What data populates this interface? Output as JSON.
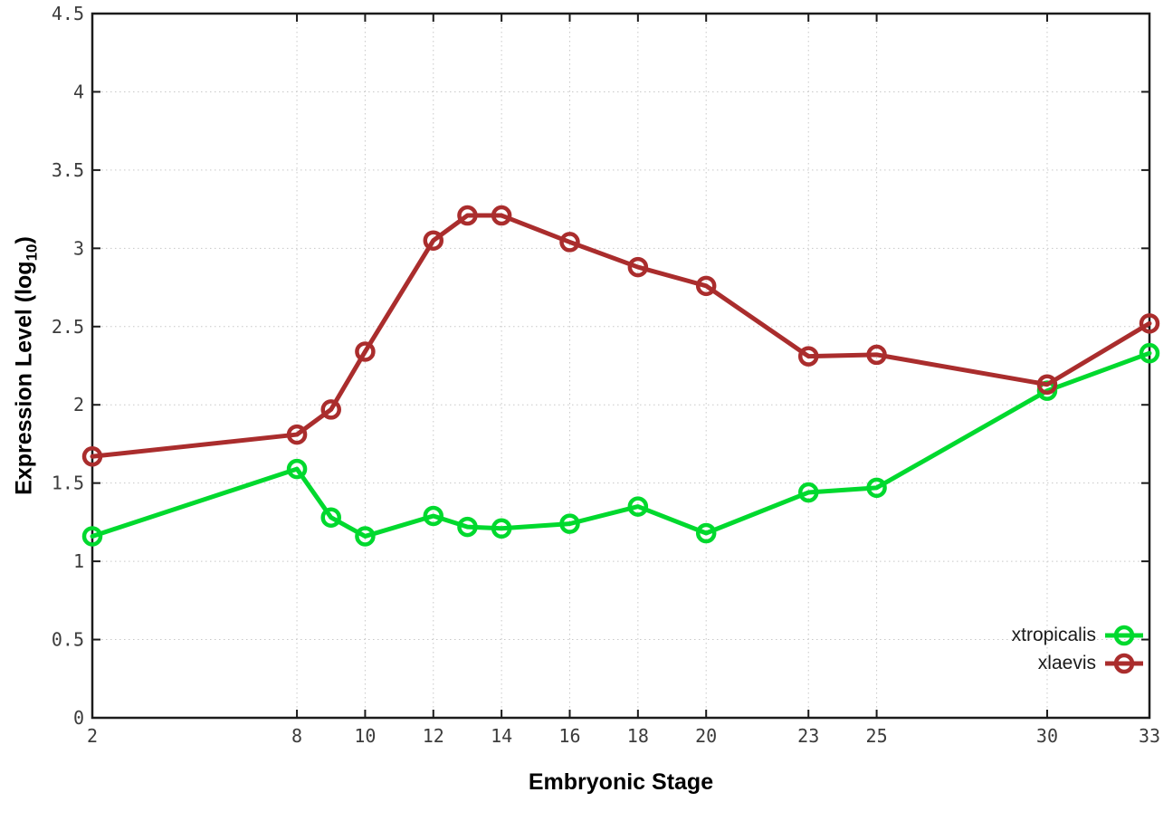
{
  "chart_data": {
    "type": "line",
    "x": [
      2,
      8,
      9,
      10,
      12,
      13,
      14,
      16,
      18,
      20,
      23,
      25,
      30,
      33
    ],
    "series": [
      {
        "name": "xtropicalis",
        "color": "#00d92e",
        "values": [
          1.16,
          1.59,
          1.28,
          1.16,
          1.29,
          1.22,
          1.21,
          1.24,
          1.35,
          1.18,
          1.44,
          1.47,
          2.09,
          2.33
        ]
      },
      {
        "name": "xlaevis",
        "color": "#aa2d2d",
        "values": [
          1.67,
          1.81,
          1.97,
          2.34,
          3.05,
          3.21,
          3.21,
          3.04,
          2.88,
          2.76,
          2.31,
          2.32,
          2.13,
          2.52
        ]
      }
    ],
    "title": "",
    "xlabel": "Embryonic Stage",
    "ylabel": "Expression Level (log10)",
    "xlim": [
      2,
      33
    ],
    "ylim": [
      0,
      4.5
    ],
    "x_ticks": [
      2,
      8,
      10,
      12,
      14,
      16,
      18,
      20,
      23,
      25,
      30,
      33
    ],
    "x_tick_labels": [
      "2",
      "8",
      "10",
      "12",
      "14",
      "16",
      "18",
      "20",
      "23",
      "25",
      "30",
      "33"
    ],
    "y_ticks": [
      0,
      0.5,
      1,
      1.5,
      2,
      2.5,
      3,
      3.5,
      4,
      4.5
    ],
    "y_tick_labels": [
      "0",
      "0.5",
      "1",
      "1.5",
      "2",
      "2.5",
      "3",
      "3.5",
      "4",
      "4.5"
    ],
    "grid": true,
    "legend_position": "bottom-right"
  },
  "x_axis_label": "Embryonic Stage",
  "y_axis_label": {
    "main": "Expression Level (log",
    "sub": "10",
    "end": ")"
  },
  "legend": {
    "items": [
      {
        "label": "xtropicalis",
        "color": "#00d92e"
      },
      {
        "label": "xlaevis",
        "color": "#aa2d2d"
      }
    ]
  },
  "styles": {
    "background": "#ffffff",
    "axis_color": "#1b1b1b",
    "grid_color": "#c8c8c8",
    "tick_label_color": "#3c3c3c",
    "title_color": "#000000"
  }
}
